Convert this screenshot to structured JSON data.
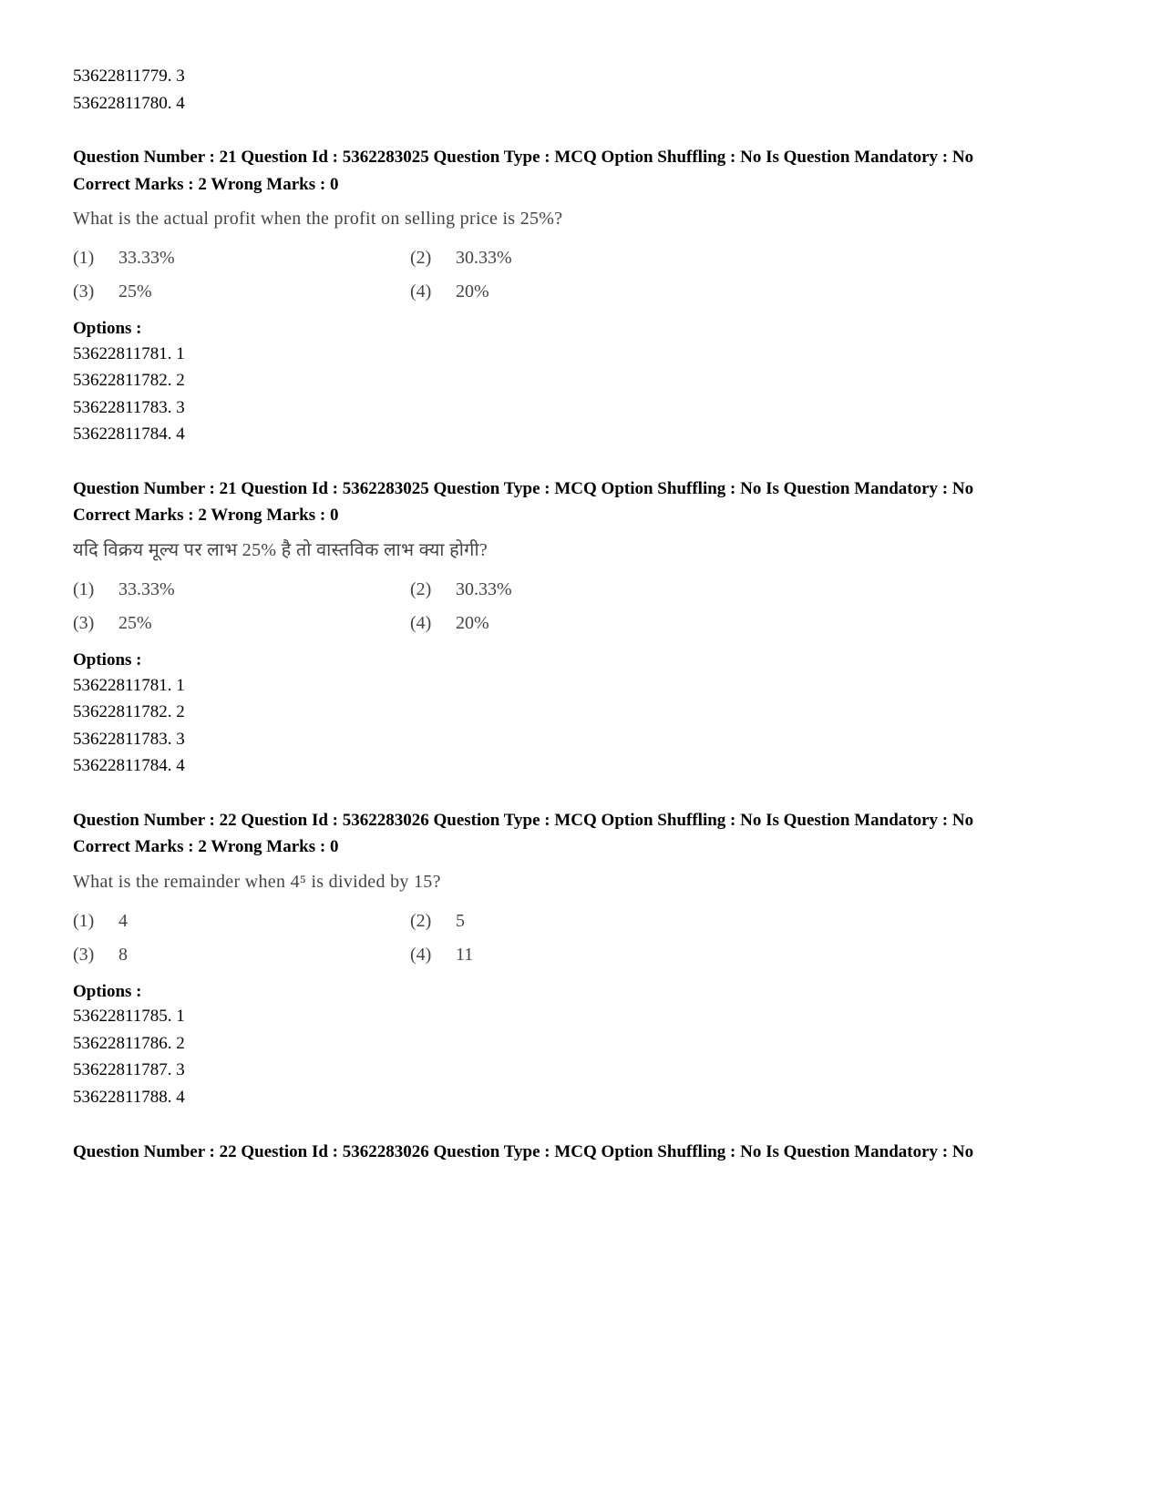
{
  "top_lines": [
    "53622811779. 3",
    "53622811780. 4"
  ],
  "blocks": [
    {
      "header": "Question Number : 21 Question Id : 5362283025 Question Type : MCQ Option Shuffling : No Is Question Mandatory : No",
      "marks": "Correct Marks : 2 Wrong Marks : 0",
      "qtext": "What is the actual profit when the profit on selling price is 25%?",
      "choices": [
        {
          "n": "(1)",
          "v": "33.33%"
        },
        {
          "n": "(2)",
          "v": "30.33%"
        },
        {
          "n": "(3)",
          "v": "25%"
        },
        {
          "n": "(4)",
          "v": "20%"
        }
      ],
      "options_label": "Options :",
      "options": [
        "53622811781. 1",
        "53622811782. 2",
        "53622811783. 3",
        "53622811784. 4"
      ]
    },
    {
      "header": "Question Number : 21 Question Id : 5362283025 Question Type : MCQ Option Shuffling : No Is Question Mandatory : No",
      "marks": "Correct Marks : 2 Wrong Marks : 0",
      "qtext": "यदि विक्रय मूल्य पर लाभ 25% है तो वास्तविक लाभ क्या होगी?",
      "choices": [
        {
          "n": "(1)",
          "v": "33.33%"
        },
        {
          "n": "(2)",
          "v": "30.33%"
        },
        {
          "n": "(3)",
          "v": "25%"
        },
        {
          "n": "(4)",
          "v": "20%"
        }
      ],
      "options_label": "Options :",
      "options": [
        "53622811781. 1",
        "53622811782. 2",
        "53622811783. 3",
        "53622811784. 4"
      ]
    },
    {
      "header": "Question Number : 22 Question Id : 5362283026 Question Type : MCQ Option Shuffling : No Is Question Mandatory : No",
      "marks": "Correct Marks : 2 Wrong Marks : 0",
      "qtext": "What is the remainder when 4⁵ is divided by 15?",
      "choices": [
        {
          "n": "(1)",
          "v": "4"
        },
        {
          "n": "(2)",
          "v": "5"
        },
        {
          "n": "(3)",
          "v": "8"
        },
        {
          "n": "(4)",
          "v": "11"
        }
      ],
      "options_label": "Options :",
      "options": [
        "53622811785. 1",
        "53622811786. 2",
        "53622811787. 3",
        "53622811788. 4"
      ]
    },
    {
      "header": "Question Number : 22 Question Id : 5362283026 Question Type : MCQ Option Shuffling : No Is Question Mandatory : No",
      "marks": "",
      "qtext": "",
      "choices": [],
      "options_label": "",
      "options": []
    }
  ]
}
